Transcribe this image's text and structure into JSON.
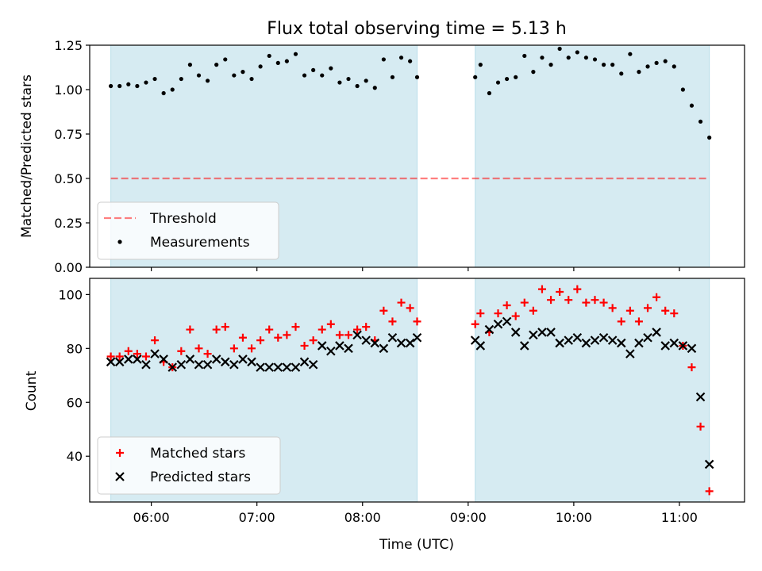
{
  "chart_data": [
    {
      "type": "scatter",
      "title": "Flux total observing time = 5.13 h",
      "xlabel": "",
      "ylabel": "Matched/Predicted stars",
      "ylim": [
        0,
        1.25
      ],
      "yticks": [
        0,
        0.25,
        0.5,
        0.75,
        1.0,
        1.25
      ],
      "ytick_labels": [
        "0.00",
        "0.25",
        "0.50",
        "0.75",
        "1.00",
        "1.25"
      ],
      "xticks": [
        "06:00",
        "07:00",
        "08:00",
        "09:00",
        "10:00",
        "11:00"
      ],
      "xlim": [
        "05:25",
        "11:37"
      ],
      "xtick_labels_shown": false,
      "shaded_intervals": [
        [
          "05:37",
          "08:31"
        ],
        [
          "09:04",
          "11:17"
        ]
      ],
      "legend_location": "lower-left",
      "colors": {
        "shade": "#add8e6",
        "threshold": "#ff0000",
        "points": "#000000"
      },
      "threshold": {
        "name": "Threshold",
        "value": 0.5,
        "x_range": [
          "05:37",
          "11:17"
        ]
      },
      "series": [
        {
          "name": "Measurements",
          "x": [
            "05:37",
            "05:42",
            "05:47",
            "05:52",
            "05:57",
            "06:02",
            "06:07",
            "06:12",
            "06:17",
            "06:22",
            "06:27",
            "06:32",
            "06:37",
            "06:42",
            "06:47",
            "06:52",
            "06:57",
            "07:02",
            "07:07",
            "07:12",
            "07:17",
            "07:22",
            "07:27",
            "07:32",
            "07:37",
            "07:42",
            "07:47",
            "07:52",
            "07:57",
            "08:02",
            "08:07",
            "08:12",
            "08:17",
            "08:22",
            "08:27",
            "08:31",
            "09:04",
            "09:07",
            "09:12",
            "09:17",
            "09:22",
            "09:27",
            "09:32",
            "09:37",
            "09:42",
            "09:47",
            "09:52",
            "09:57",
            "10:02",
            "10:07",
            "10:12",
            "10:17",
            "10:22",
            "10:27",
            "10:32",
            "10:37",
            "10:42",
            "10:47",
            "10:52",
            "10:57",
            "11:02",
            "11:07",
            "11:12",
            "11:17"
          ],
          "y": [
            1.02,
            1.02,
            1.03,
            1.02,
            1.04,
            1.06,
            0.98,
            1.0,
            1.06,
            1.14,
            1.08,
            1.05,
            1.14,
            1.17,
            1.08,
            1.1,
            1.06,
            1.13,
            1.19,
            1.15,
            1.16,
            1.2,
            1.08,
            1.11,
            1.08,
            1.12,
            1.04,
            1.06,
            1.02,
            1.05,
            1.01,
            1.17,
            1.07,
            1.18,
            1.16,
            1.07,
            1.07,
            1.14,
            0.98,
            1.04,
            1.06,
            1.07,
            1.19,
            1.1,
            1.18,
            1.14,
            1.23,
            1.18,
            1.21,
            1.18,
            1.17,
            1.14,
            1.14,
            1.09,
            1.2,
            1.1,
            1.13,
            1.15,
            1.16,
            1.13,
            1.0,
            0.91,
            0.82,
            0.73
          ]
        }
      ]
    },
    {
      "type": "scatter",
      "title": "",
      "xlabel": "Time (UTC)",
      "ylabel": "Count",
      "ylim": [
        23,
        106
      ],
      "yticks": [
        40,
        60,
        80,
        100
      ],
      "ytick_labels": [
        "40",
        "60",
        "80",
        "100"
      ],
      "xticks": [
        "06:00",
        "07:00",
        "08:00",
        "09:00",
        "10:00",
        "11:00"
      ],
      "xtick_labels": [
        "06:00",
        "07:00",
        "08:00",
        "09:00",
        "10:00",
        "11:00"
      ],
      "xlim": [
        "05:25",
        "11:37"
      ],
      "shaded_intervals": [
        [
          "05:37",
          "08:31"
        ],
        [
          "09:04",
          "11:17"
        ]
      ],
      "legend_location": "lower-left",
      "colors": {
        "shade": "#add8e6",
        "matched": "#ff0000",
        "predicted": "#000000"
      },
      "series": [
        {
          "name": "Matched stars",
          "marker": "plus",
          "x": [
            "05:37",
            "05:42",
            "05:47",
            "05:52",
            "05:57",
            "06:02",
            "06:07",
            "06:12",
            "06:17",
            "06:22",
            "06:27",
            "06:32",
            "06:37",
            "06:42",
            "06:47",
            "06:52",
            "06:57",
            "07:02",
            "07:07",
            "07:12",
            "07:17",
            "07:22",
            "07:27",
            "07:32",
            "07:37",
            "07:42",
            "07:47",
            "07:52",
            "07:57",
            "08:02",
            "08:07",
            "08:12",
            "08:17",
            "08:22",
            "08:27",
            "08:31",
            "09:04",
            "09:07",
            "09:12",
            "09:17",
            "09:22",
            "09:27",
            "09:32",
            "09:37",
            "09:42",
            "09:47",
            "09:52",
            "09:57",
            "10:02",
            "10:07",
            "10:12",
            "10:17",
            "10:22",
            "10:27",
            "10:32",
            "10:37",
            "10:42",
            "10:47",
            "10:52",
            "10:57",
            "11:02",
            "11:07",
            "11:12",
            "11:17"
          ],
          "y": [
            77,
            77,
            79,
            78,
            77,
            83,
            75,
            73,
            79,
            87,
            80,
            78,
            87,
            88,
            80,
            84,
            80,
            83,
            87,
            84,
            85,
            88,
            81,
            83,
            87,
            89,
            85,
            85,
            87,
            88,
            83,
            94,
            90,
            97,
            95,
            90,
            89,
            93,
            86,
            93,
            96,
            92,
            97,
            94,
            102,
            98,
            101,
            98,
            102,
            97,
            98,
            97,
            95,
            90,
            94,
            90,
            95,
            99,
            94,
            93,
            81,
            73,
            51,
            27
          ]
        },
        {
          "name": "Predicted stars",
          "marker": "x",
          "x": [
            "05:37",
            "05:42",
            "05:47",
            "05:52",
            "05:57",
            "06:02",
            "06:07",
            "06:12",
            "06:17",
            "06:22",
            "06:27",
            "06:32",
            "06:37",
            "06:42",
            "06:47",
            "06:52",
            "06:57",
            "07:02",
            "07:07",
            "07:12",
            "07:17",
            "07:22",
            "07:27",
            "07:32",
            "07:37",
            "07:42",
            "07:47",
            "07:52",
            "07:57",
            "08:02",
            "08:07",
            "08:12",
            "08:17",
            "08:22",
            "08:27",
            "08:31",
            "09:04",
            "09:07",
            "09:12",
            "09:17",
            "09:22",
            "09:27",
            "09:32",
            "09:37",
            "09:42",
            "09:47",
            "09:52",
            "09:57",
            "10:02",
            "10:07",
            "10:12",
            "10:17",
            "10:22",
            "10:27",
            "10:32",
            "10:37",
            "10:42",
            "10:47",
            "10:52",
            "10:57",
            "11:02",
            "11:07",
            "11:12",
            "11:17"
          ],
          "y": [
            75,
            75,
            76,
            76,
            74,
            78,
            76,
            73,
            74,
            76,
            74,
            74,
            76,
            75,
            74,
            76,
            75,
            73,
            73,
            73,
            73,
            73,
            75,
            74,
            81,
            79,
            81,
            80,
            85,
            83,
            82,
            80,
            84,
            82,
            82,
            84,
            83,
            81,
            87,
            89,
            90,
            86,
            81,
            85,
            86,
            86,
            82,
            83,
            84,
            82,
            83,
            84,
            83,
            82,
            78,
            82,
            84,
            86,
            81,
            82,
            81,
            80,
            62,
            37
          ]
        }
      ]
    }
  ]
}
